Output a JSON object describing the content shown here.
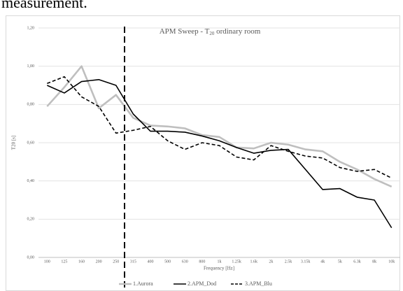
{
  "page_text": "measurement.",
  "chart_data": {
    "type": "line",
    "title": {
      "prefix": "APM Sweep - T",
      "subscript": "20",
      "suffix": " ordinary room"
    },
    "ylabel": "T20 [s]",
    "xlabel": "Frequency [Hz]",
    "categories": [
      "100",
      "125",
      "160",
      "200",
      "250",
      "315",
      "400",
      "500",
      "630",
      "800",
      "1k",
      "1.25k",
      "1.6k",
      "2k",
      "2.5k",
      "3.15k",
      "4k",
      "5k",
      "6.3k",
      "8k",
      "10k"
    ],
    "series": [
      {
        "name": "1.Aurora",
        "color": "#bfbfbf",
        "dashed": false,
        "values": [
          0.79,
          0.89,
          1.0,
          0.78,
          0.85,
          0.73,
          0.69,
          0.685,
          0.675,
          0.64,
          0.63,
          0.575,
          0.57,
          0.6,
          0.59,
          0.565,
          0.555,
          0.5,
          0.46,
          0.41,
          0.37
        ]
      },
      {
        "name": "2.APM_Dod",
        "color": "#000000",
        "dashed": false,
        "values": [
          0.9,
          0.86,
          0.92,
          0.93,
          0.9,
          0.75,
          0.66,
          0.66,
          0.655,
          0.635,
          0.61,
          0.575,
          0.545,
          0.56,
          0.565,
          0.46,
          0.355,
          0.36,
          0.315,
          0.3,
          0.155
        ]
      },
      {
        "name": "3.APM_Blu",
        "color": "#000000",
        "dashed": true,
        "values": [
          0.91,
          0.945,
          0.84,
          0.79,
          0.65,
          0.665,
          0.685,
          0.61,
          0.565,
          0.6,
          0.585,
          0.525,
          0.51,
          0.585,
          0.555,
          0.53,
          0.52,
          0.47,
          0.45,
          0.46,
          0.415
        ]
      }
    ],
    "ylim": [
      0,
      1.2
    ],
    "yticks": [
      {
        "value": 0,
        "label": "0,00"
      },
      {
        "value": 0.2,
        "label": "0,20"
      },
      {
        "value": 0.4,
        "label": "0,40"
      },
      {
        "value": 0.6,
        "label": "0,60"
      },
      {
        "value": 0.8,
        "label": "0,80"
      },
      {
        "value": 1.0,
        "label": "1,00"
      },
      {
        "value": 1.2,
        "label": "1,20"
      }
    ],
    "grid": true,
    "legend": "bottom"
  }
}
